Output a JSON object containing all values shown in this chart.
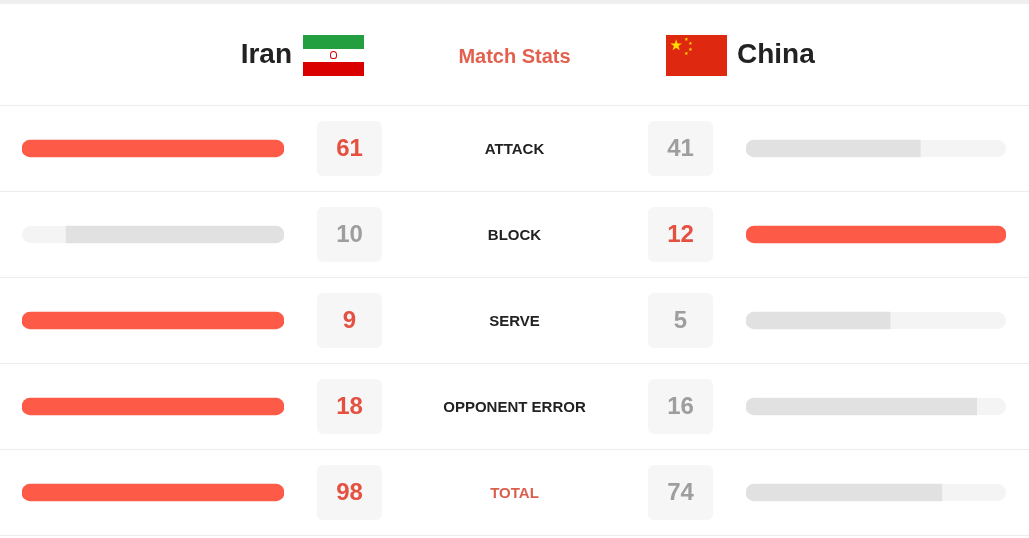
{
  "chart_data": [
    {
      "type": "bar",
      "orientation": "horizontal",
      "title": "Match Stats",
      "categories": [
        "ATTACK"
      ],
      "series": [
        {
          "name": "Iran",
          "color": "#fe5a48",
          "values": [
            61
          ]
        }
      ],
      "data_labels": true,
      "tick_labels": "y"
    },
    {
      "type": "bar",
      "orientation": "horizontal",
      "categories": [
        "ATTACK"
      ],
      "series": [
        {
          "name": "China",
          "color": "#e1e1e1",
          "values": [
            41
          ]
        }
      ],
      "data_labels": true,
      "tick_labels": false
    },
    {
      "type": "bar",
      "orientation": "horizontal",
      "categories": [
        "BLOCK"
      ],
      "series": [
        {
          "color": "#e1e1e1",
          "values": [
            10
          ]
        }
      ],
      "data_labels": true,
      "tick_labels": "y"
    },
    {
      "type": "bar",
      "orientation": "horizontal",
      "categories": [
        "BLOCK"
      ],
      "series": [
        {
          "color": "#fe5a48",
          "values": [
            12
          ]
        }
      ],
      "data_labels": true,
      "tick_labels": false
    },
    {
      "type": "bar",
      "orientation": "horizontal",
      "categories": [
        "SERVE"
      ],
      "series": [
        {
          "color": "#fe5a48",
          "values": [
            9
          ]
        }
      ],
      "data_labels": true,
      "tick_labels": "y"
    },
    {
      "type": "bar",
      "orientation": "horizontal",
      "categories": [
        "SERVE"
      ],
      "series": [
        {
          "color": "#e1e1e1",
          "values": [
            5
          ]
        }
      ],
      "data_labels": true,
      "tick_labels": false
    },
    {
      "type": "bar",
      "orientation": "horizontal",
      "categories": [
        "OPPONENT ERROR"
      ],
      "series": [
        {
          "color": "#fe5a48",
          "values": [
            18
          ]
        }
      ],
      "data_labels": true,
      "tick_labels": "y"
    },
    {
      "type": "bar",
      "orientation": "horizontal",
      "categories": [
        "OPPONENT ERROR"
      ],
      "series": [
        {
          "color": "#e1e1e1",
          "values": [
            16
          ]
        }
      ],
      "data_labels": true,
      "tick_labels": false
    },
    {
      "type": "bar",
      "orientation": "horizontal",
      "categories": [
        "TOTAL"
      ],
      "series": [
        {
          "color": "#fe5a48",
          "values": [
            98
          ]
        }
      ],
      "data_labels": true,
      "tick_labels": "y"
    },
    {
      "type": "bar",
      "orientation": "horizontal",
      "categories": [
        "TOTAL"
      ],
      "series": [
        {
          "color": "#e1e1e1",
          "values": [
            74
          ]
        }
      ],
      "data_labels": true,
      "tick_labels": false
    }
  ]
}
